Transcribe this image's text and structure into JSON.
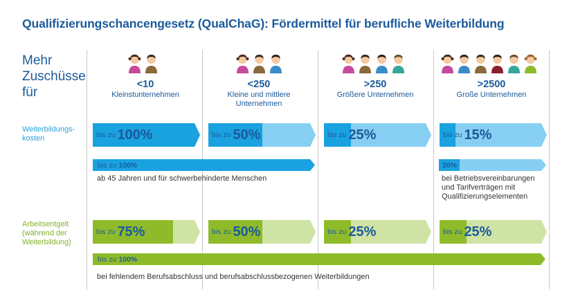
{
  "title": "Qualifizierungschancengesetz (QualChaG): Fördermittel für berufliche Weiterbildung",
  "row_header": [
    "Mehr",
    "Zuschüsse",
    "für"
  ],
  "columns": [
    {
      "size": "<10",
      "label": "Kleinstunternehmen",
      "people": 2
    },
    {
      "size": "<250",
      "label": "Kleine und mittlere Unternehmen",
      "people": 3
    },
    {
      "size": ">250",
      "label": "Größere Unternehmen",
      "people": 4
    },
    {
      "size": ">2500",
      "label": "Große Unternehmen",
      "people": 6
    }
  ],
  "rows": {
    "weiterbildung": {
      "label": "Weiterbildungs-\nkosten",
      "prefix": "bis zu",
      "values": [
        "100%",
        "50%",
        "25%",
        "15%"
      ],
      "fractions": [
        1.0,
        0.5,
        0.25,
        0.15
      ],
      "extra1": {
        "prefix": "bis zu",
        "value": "100%",
        "note": "ab 45 Jahren und für schwerbehinderte Menschen"
      },
      "extra2": {
        "value": "20%",
        "note": "bei Betriebsvereinbarungen\nund Tarifverträgen mit\nQualifizierungselementen"
      }
    },
    "arbeitsentgelt": {
      "label": "Arbeitsentgelt\n(während der\nWeiterbildung)",
      "prefix": "bis zu",
      "values": [
        "75%",
        "50%",
        "25%",
        "25%"
      ],
      "fractions": [
        0.75,
        0.5,
        0.25,
        0.25
      ],
      "extra": {
        "prefix": "bis zu",
        "value": "100%",
        "note": "bei fehlendem Berufsabschluss und berufsabschlussbezogenen Weiterbildungen"
      }
    }
  },
  "colors": {
    "title": "#1b5a9b",
    "blue_dark": "#1aa1e0",
    "blue_light": "#86cff2",
    "green_dark": "#8fbb2a",
    "green_light": "#cfe3a5",
    "label_blue": "#2a9fd6",
    "label_green": "#82b22a"
  },
  "icons": [
    "girl-icon",
    "boy-icon",
    "person-icon"
  ]
}
